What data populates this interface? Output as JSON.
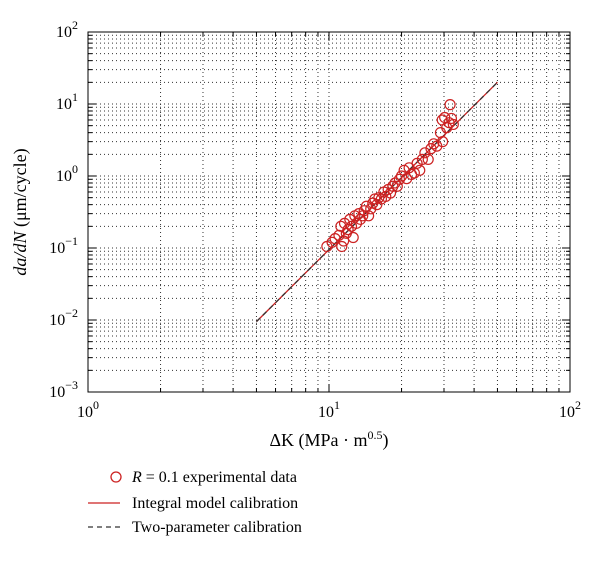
{
  "chart_data": {
    "type": "scatter",
    "title": "",
    "x_scale": "log",
    "y_scale": "log",
    "xlim": [
      1,
      100
    ],
    "ylim": [
      0.001,
      100
    ],
    "grid": "dotted-major-minor",
    "legend_position": "bottom-left-outside",
    "xlabel": {
      "main": "ΔK (MPa · m",
      "sup": "0.5",
      "tail": ")"
    },
    "ylabel": {
      "var": "da/dN",
      "rest": " (μm/cycle)"
    },
    "x_ticks": [
      {
        "value": 1,
        "base": "10",
        "exp": "0"
      },
      {
        "value": 10,
        "base": "10",
        "exp": "1"
      },
      {
        "value": 100,
        "base": "10",
        "exp": "2"
      }
    ],
    "y_ticks": [
      {
        "value": 0.001,
        "base": "10",
        "exp": "−3"
      },
      {
        "value": 0.01,
        "base": "10",
        "exp": "−2"
      },
      {
        "value": 0.1,
        "base": "10",
        "exp": "−1"
      },
      {
        "value": 1,
        "base": "10",
        "exp": "0"
      },
      {
        "value": 10,
        "base": "10",
        "exp": "1"
      },
      {
        "value": 100,
        "base": "10",
        "exp": "2"
      }
    ],
    "series": [
      {
        "name": "R = 0.1 experimental data",
        "legend_var": "R",
        "legend_rest": " = 0.1 experimental data",
        "kind": "scatter",
        "marker": "open-circle",
        "color": "#cc2222",
        "points": [
          [
            9.8,
            0.105
          ],
          [
            10.3,
            0.12
          ],
          [
            10.6,
            0.135
          ],
          [
            11.0,
            0.15
          ],
          [
            11.3,
            0.105
          ],
          [
            11.5,
            0.125
          ],
          [
            11.2,
            0.2
          ],
          [
            11.6,
            0.22
          ],
          [
            11.8,
            0.16
          ],
          [
            12.0,
            0.18
          ],
          [
            12.2,
            0.25
          ],
          [
            12.4,
            0.2
          ],
          [
            12.6,
            0.14
          ],
          [
            12.8,
            0.28
          ],
          [
            13.0,
            0.22
          ],
          [
            13.3,
            0.3
          ],
          [
            13.5,
            0.25
          ],
          [
            13.8,
            0.28
          ],
          [
            14.0,
            0.33
          ],
          [
            14.3,
            0.38
          ],
          [
            14.6,
            0.28
          ],
          [
            14.9,
            0.35
          ],
          [
            15.2,
            0.42
          ],
          [
            15.5,
            0.48
          ],
          [
            15.8,
            0.4
          ],
          [
            16.1,
            0.5
          ],
          [
            16.5,
            0.48
          ],
          [
            16.9,
            0.6
          ],
          [
            17.2,
            0.52
          ],
          [
            17.6,
            0.65
          ],
          [
            18.0,
            0.58
          ],
          [
            18.4,
            0.72
          ],
          [
            18.8,
            0.8
          ],
          [
            19.2,
            0.72
          ],
          [
            19.6,
            0.9
          ],
          [
            20.0,
            1.0
          ],
          [
            20.5,
            1.2
          ],
          [
            21.0,
            0.92
          ],
          [
            21.5,
            1.3
          ],
          [
            22.0,
            1.05
          ],
          [
            22.6,
            1.1
          ],
          [
            23.2,
            1.5
          ],
          [
            23.8,
            1.2
          ],
          [
            24.4,
            1.7
          ],
          [
            25.0,
            2.1
          ],
          [
            25.8,
            1.7
          ],
          [
            26.5,
            2.4
          ],
          [
            27.2,
            2.8
          ],
          [
            28.0,
            2.6
          ],
          [
            29.0,
            4.0
          ],
          [
            29.6,
            3.0
          ],
          [
            30.2,
            6.5
          ],
          [
            30.8,
            4.7
          ],
          [
            29.5,
            6.0
          ],
          [
            31.5,
            5.5
          ],
          [
            32.2,
            6.3
          ],
          [
            32.8,
            5.2
          ],
          [
            31.8,
            9.8
          ]
        ]
      },
      {
        "name": "Integral model calibration",
        "kind": "line",
        "style": "solid",
        "color": "#cc2222",
        "points": [
          [
            5,
            0.0095
          ],
          [
            50,
            20.0
          ]
        ]
      },
      {
        "name": "Two-parameter calibration",
        "kind": "line",
        "style": "dashed",
        "color": "#333333",
        "points": [
          [
            5,
            0.0095
          ],
          [
            50,
            20.0
          ]
        ]
      }
    ]
  }
}
